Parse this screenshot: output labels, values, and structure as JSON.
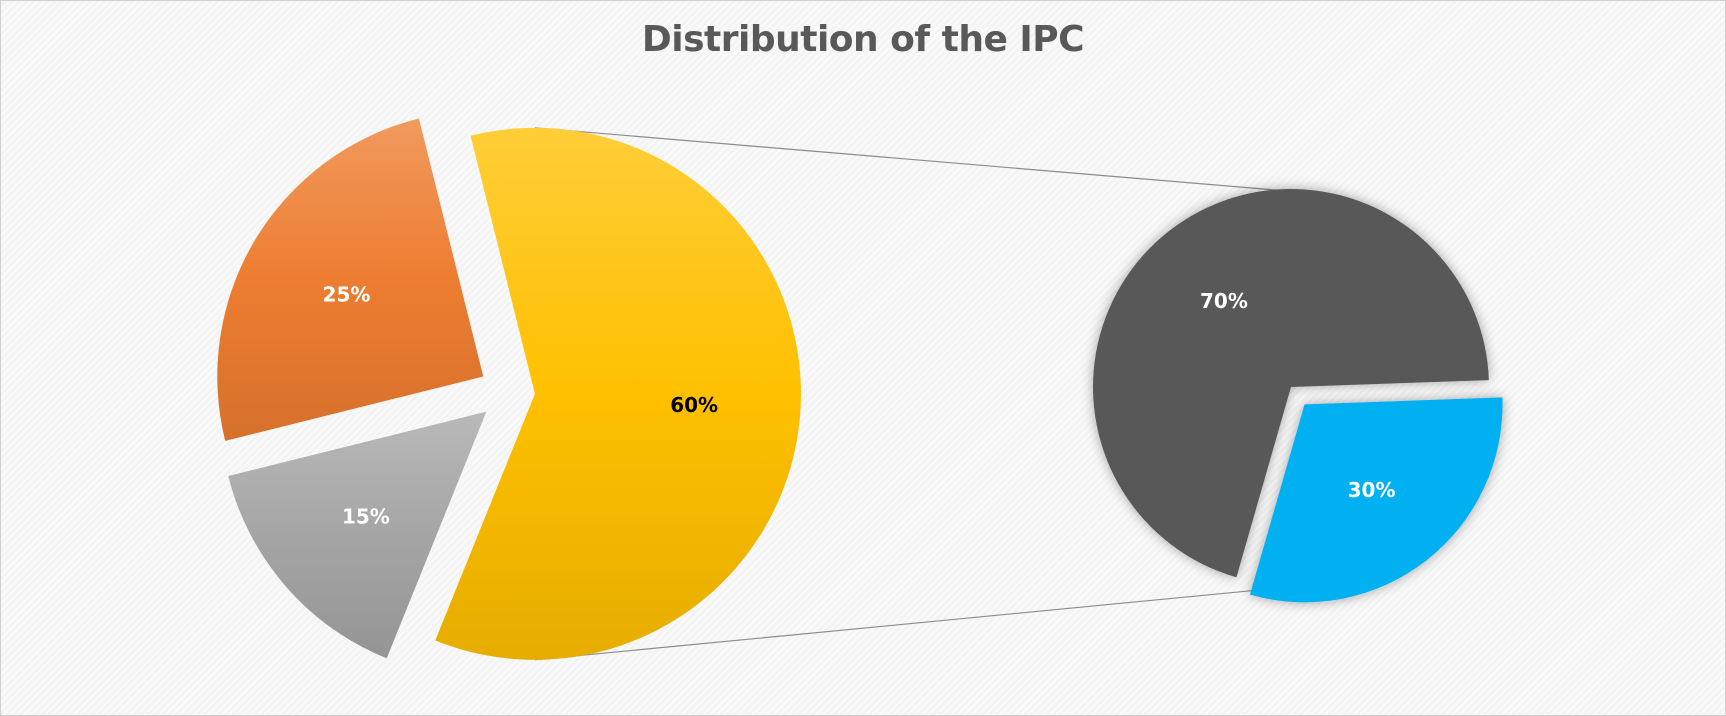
{
  "chart_data": {
    "type": "pie",
    "subtype": "pie-of-pie",
    "title": "Distribution of the IPC",
    "primary": {
      "slices": [
        {
          "value": 60,
          "label": "60%",
          "color": "#FFC000",
          "label_color": "#000000",
          "exploded": true
        },
        {
          "value": 15,
          "label": "15%",
          "color": "#A5A5A5",
          "label_color": "#FFFFFF",
          "exploded": true
        },
        {
          "value": 25,
          "label": "25%",
          "color": "#ED7D31",
          "label_color": "#FFFFFF",
          "exploded": true
        }
      ],
      "expanded_slice": "60%"
    },
    "secondary": {
      "slices": [
        {
          "value": 30,
          "label": "30%",
          "color": "#00B0F0",
          "label_color": "#FFFFFF",
          "exploded": true
        },
        {
          "value": 70,
          "label": "70%",
          "color": "#595959",
          "label_color": "#FFFFFF",
          "exploded": false
        }
      ]
    },
    "connector_lines": true,
    "legend": "none"
  }
}
